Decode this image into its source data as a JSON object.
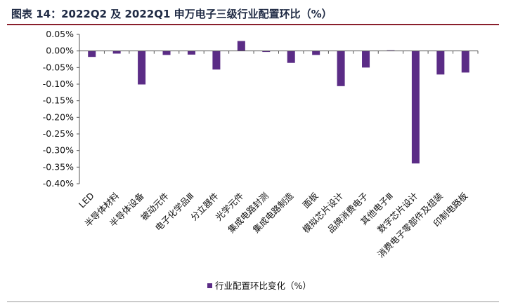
{
  "header": {
    "title": "图表 14：2022Q2 及 2022Q1 申万电子三级行业配置环比（%）"
  },
  "legend": {
    "label": "行业配置环比变化（%）"
  },
  "colors": {
    "bar": "#5b2c86",
    "axis": "#555555",
    "title_rule": "#8a1f2c"
  },
  "chart_data": {
    "type": "bar",
    "title": "图表 14：2022Q2 及 2022Q1 申万电子三级行业配置环比（%）",
    "categories": [
      "LED",
      "半导体材料",
      "半导体设备",
      "被动元件",
      "电子化学品Ⅲ",
      "分立器件",
      "光学元件",
      "集成电路封测",
      "集成电路制造",
      "面板",
      "模拟芯片设计",
      "品牌消费电子",
      "其他电子Ⅲ",
      "数字芯片设计",
      "消费电子零部件及组装",
      "印制电路板"
    ],
    "tick_labels": [
      "0.05%",
      "0.00%",
      "-0.05%",
      "-0.10%",
      "-0.15%",
      "-0.20%",
      "-0.25%",
      "-0.30%",
      "-0.35%",
      "-0.40%"
    ],
    "series": [
      {
        "name": "行业配置环比变化（%）",
        "values": [
          -0.018,
          -0.008,
          -0.101,
          -0.012,
          -0.011,
          -0.056,
          0.03,
          -0.003,
          -0.036,
          -0.012,
          -0.106,
          -0.05,
          0.002,
          -0.339,
          -0.071,
          -0.065
        ]
      }
    ],
    "ylim": [
      -0.4,
      0.05
    ],
    "grid": false,
    "legend_position": "bottom"
  }
}
